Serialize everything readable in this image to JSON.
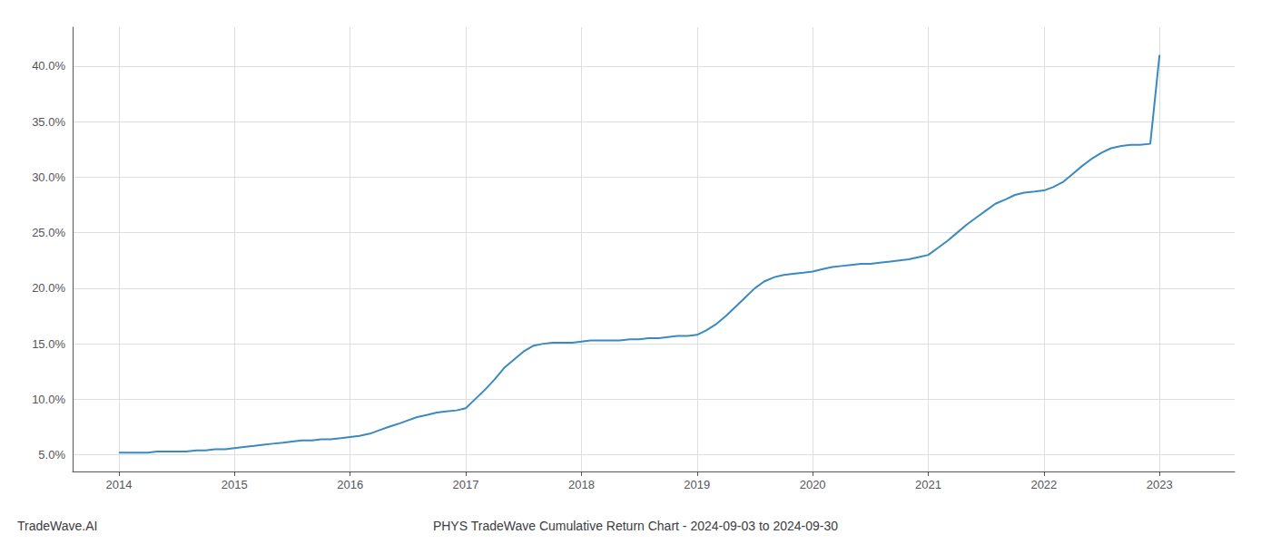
{
  "chart_data": {
    "type": "line",
    "title": "PHYS TradeWave Cumulative Return Chart - 2024-09-03 to 2024-09-30",
    "annotations": [
      "TradeWave.AI"
    ],
    "color": "#3a8abf",
    "grid": true,
    "xlim": [
      2013.6,
      2023.65
    ],
    "ylim": [
      0.035,
      0.435
    ],
    "xticks": [
      2014,
      2015,
      2016,
      2017,
      2018,
      2019,
      2020,
      2021,
      2022,
      2023
    ],
    "yticks": [
      {
        "value": 0.05,
        "label": "5.0%"
      },
      {
        "value": 0.1,
        "label": "10.0%"
      },
      {
        "value": 0.15,
        "label": "15.0%"
      },
      {
        "value": 0.2,
        "label": "20.0%"
      },
      {
        "value": 0.25,
        "label": "25.0%"
      },
      {
        "value": 0.3,
        "label": "30.0%"
      },
      {
        "value": 0.35,
        "label": "35.0%"
      },
      {
        "value": 0.4,
        "label": "40.0%"
      }
    ],
    "x": [
      2014.0,
      2014.08,
      2014.17,
      2014.25,
      2014.33,
      2014.42,
      2014.5,
      2014.58,
      2014.67,
      2014.75,
      2014.83,
      2014.92,
      2015.0,
      2015.08,
      2015.17,
      2015.25,
      2015.33,
      2015.42,
      2015.5,
      2015.58,
      2015.67,
      2015.75,
      2015.83,
      2015.92,
      2016.0,
      2016.08,
      2016.17,
      2016.25,
      2016.33,
      2016.42,
      2016.5,
      2016.58,
      2016.67,
      2016.75,
      2016.83,
      2016.92,
      2017.0,
      2017.08,
      2017.17,
      2017.25,
      2017.33,
      2017.42,
      2017.5,
      2017.58,
      2017.67,
      2017.75,
      2017.83,
      2017.92,
      2018.0,
      2018.08,
      2018.17,
      2018.25,
      2018.33,
      2018.42,
      2018.5,
      2018.58,
      2018.67,
      2018.75,
      2018.83,
      2018.92,
      2019.0,
      2019.08,
      2019.17,
      2019.25,
      2019.33,
      2019.42,
      2019.5,
      2019.58,
      2019.67,
      2019.75,
      2019.83,
      2019.92,
      2020.0,
      2020.08,
      2020.17,
      2020.25,
      2020.33,
      2020.42,
      2020.5,
      2020.58,
      2020.67,
      2020.75,
      2020.83,
      2020.92,
      2021.0,
      2021.08,
      2021.17,
      2021.25,
      2021.33,
      2021.42,
      2021.5,
      2021.58,
      2021.67,
      2021.75,
      2021.83,
      2021.92,
      2022.0,
      2022.08,
      2022.17,
      2022.25,
      2022.33,
      2022.42,
      2022.5,
      2022.58,
      2022.67,
      2022.75,
      2022.83,
      2022.92,
      2023.0
    ],
    "values": [
      0.052,
      0.052,
      0.052,
      0.052,
      0.053,
      0.053,
      0.053,
      0.053,
      0.054,
      0.054,
      0.055,
      0.055,
      0.056,
      0.057,
      0.058,
      0.059,
      0.06,
      0.061,
      0.062,
      0.063,
      0.063,
      0.064,
      0.064,
      0.065,
      0.066,
      0.067,
      0.069,
      0.072,
      0.075,
      0.078,
      0.081,
      0.084,
      0.086,
      0.088,
      0.089,
      0.09,
      0.092,
      0.1,
      0.109,
      0.118,
      0.128,
      0.136,
      0.143,
      0.148,
      0.15,
      0.151,
      0.151,
      0.151,
      0.152,
      0.153,
      0.153,
      0.153,
      0.153,
      0.154,
      0.154,
      0.155,
      0.155,
      0.156,
      0.157,
      0.157,
      0.158,
      0.162,
      0.168,
      0.175,
      0.183,
      0.192,
      0.2,
      0.206,
      0.21,
      0.212,
      0.213,
      0.214,
      0.215,
      0.217,
      0.219,
      0.22,
      0.221,
      0.222,
      0.222,
      0.223,
      0.224,
      0.225,
      0.226,
      0.228,
      0.23,
      0.236,
      0.243,
      0.25,
      0.257,
      0.264,
      0.27,
      0.276,
      0.28,
      0.284,
      0.286,
      0.287,
      0.288,
      0.291,
      0.296,
      0.303,
      0.31,
      0.317,
      0.322,
      0.326,
      0.328,
      0.329,
      0.329,
      0.33,
      0.41
    ]
  }
}
